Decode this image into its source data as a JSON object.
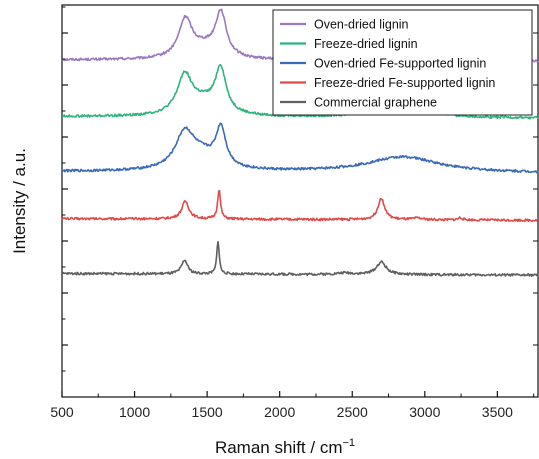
{
  "chart_data": {
    "type": "line",
    "xlabel": "Raman shift / cm",
    "xlabel_superscript": "−1",
    "ylabel": "Intensity / a.u.",
    "xlim": [
      500,
      3780
    ],
    "x_ticks": [
      500,
      1000,
      1500,
      2000,
      2500,
      3000,
      3500
    ],
    "y_tick_labels_shown": false,
    "grid": false,
    "legend_position": "top-right",
    "series": [
      {
        "name": "Oven-dried lignin",
        "color": "#9b79c0",
        "baseline": 0.86,
        "bands": [
          {
            "center": 1350,
            "height": 0.095,
            "width": 55
          },
          {
            "center": 1595,
            "height": 0.11,
            "width": 45
          },
          {
            "center": 1480,
            "height": 0.03,
            "width": 120
          },
          {
            "center": 2700,
            "height": 0.025,
            "width": 120
          },
          {
            "center": 2940,
            "height": 0.022,
            "width": 140
          },
          {
            "center": 3200,
            "height": 0.01,
            "width": 120
          }
        ]
      },
      {
        "name": "Freeze-dried lignin",
        "color": "#2eb47c",
        "baseline": 0.715,
        "bands": [
          {
            "center": 1345,
            "height": 0.095,
            "width": 60
          },
          {
            "center": 1593,
            "height": 0.11,
            "width": 45
          },
          {
            "center": 1470,
            "height": 0.035,
            "width": 130
          },
          {
            "center": 2750,
            "height": 0.018,
            "width": 200
          },
          {
            "center": 2950,
            "height": 0.012,
            "width": 180
          }
        ]
      },
      {
        "name": "Oven-dried Fe-supported lignin",
        "color": "#3a6ab8",
        "baseline": 0.575,
        "bands": [
          {
            "center": 1345,
            "height": 0.085,
            "width": 75
          },
          {
            "center": 1595,
            "height": 0.095,
            "width": 40
          },
          {
            "center": 1460,
            "height": 0.04,
            "width": 140
          },
          {
            "center": 2850,
            "height": 0.04,
            "width": 300
          }
        ]
      },
      {
        "name": "Freeze-dried Fe-supported lignin",
        "color": "#e04a4a",
        "baseline": 0.455,
        "bands": [
          {
            "center": 1350,
            "height": 0.045,
            "width": 30
          },
          {
            "center": 1582,
            "height": 0.075,
            "width": 12
          },
          {
            "center": 2700,
            "height": 0.055,
            "width": 28
          },
          {
            "center": 2950,
            "height": 0.004,
            "width": 40
          },
          {
            "center": 3245,
            "height": 0.006,
            "width": 18
          }
        ]
      },
      {
        "name": "Commercial graphene",
        "color": "#606060",
        "baseline": 0.315,
        "bands": [
          {
            "center": 1345,
            "height": 0.035,
            "width": 25
          },
          {
            "center": 1575,
            "height": 0.085,
            "width": 10
          },
          {
            "center": 2700,
            "height": 0.032,
            "width": 40
          },
          {
            "center": 2450,
            "height": 0.004,
            "width": 60
          }
        ]
      }
    ]
  }
}
